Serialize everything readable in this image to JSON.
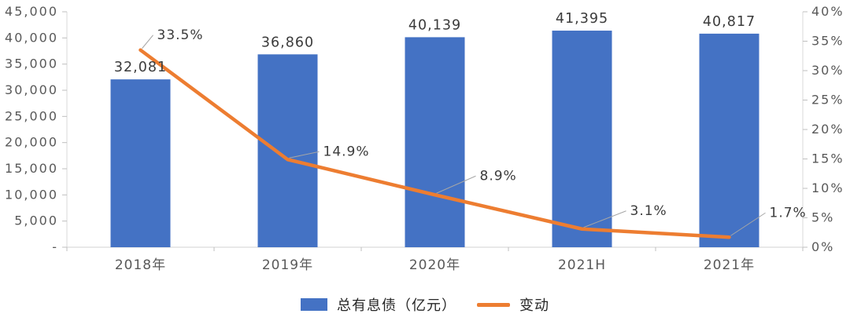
{
  "chart_data": {
    "type": "bar+line",
    "categories": [
      "2018年",
      "2019年",
      "2020年",
      "2021H",
      "2021年"
    ],
    "series": [
      {
        "name": "总有息债（亿元）",
        "type": "bar",
        "axis": "left",
        "color": "#4472C4",
        "values": [
          32081,
          36860,
          40139,
          41395,
          40817
        ],
        "labels": [
          "32,081",
          "36,860",
          "40,139",
          "41,395",
          "40,817"
        ]
      },
      {
        "name": "变动",
        "type": "line",
        "axis": "right",
        "color": "#ED7D31",
        "values": [
          33.5,
          14.9,
          8.9,
          3.1,
          1.7
        ],
        "labels": [
          "33.5%",
          "14.9%",
          "8.9%",
          "3.1%",
          "1.7%"
        ]
      }
    ],
    "left_axis": {
      "min": 0,
      "max": 45000,
      "step": 5000,
      "tick_labels": [
        "-",
        "5,000",
        "10,000",
        "15,000",
        "20,000",
        "25,000",
        "30,000",
        "35,000",
        "40,000",
        "45,000"
      ]
    },
    "right_axis": {
      "min": 0,
      "max": 40,
      "step": 5,
      "tick_labels": [
        "0%",
        "5%",
        "10%",
        "15%",
        "20%",
        "25%",
        "30%",
        "35%",
        "40%"
      ]
    },
    "legend": [
      {
        "label": "总有息债（亿元）",
        "color": "#4472C4",
        "type": "bar"
      },
      {
        "label": "变动",
        "color": "#ED7D31",
        "type": "line"
      }
    ],
    "grid": false,
    "legend_position": "bottom"
  },
  "colors": {
    "bar": "#4472C4",
    "line": "#ED7D31",
    "axis_line": "#D9D9D9",
    "tick": "#BFBFBF",
    "leader": "#A6A6A6",
    "axis_text": "#595959",
    "label_text": "#3b3b3b"
  }
}
